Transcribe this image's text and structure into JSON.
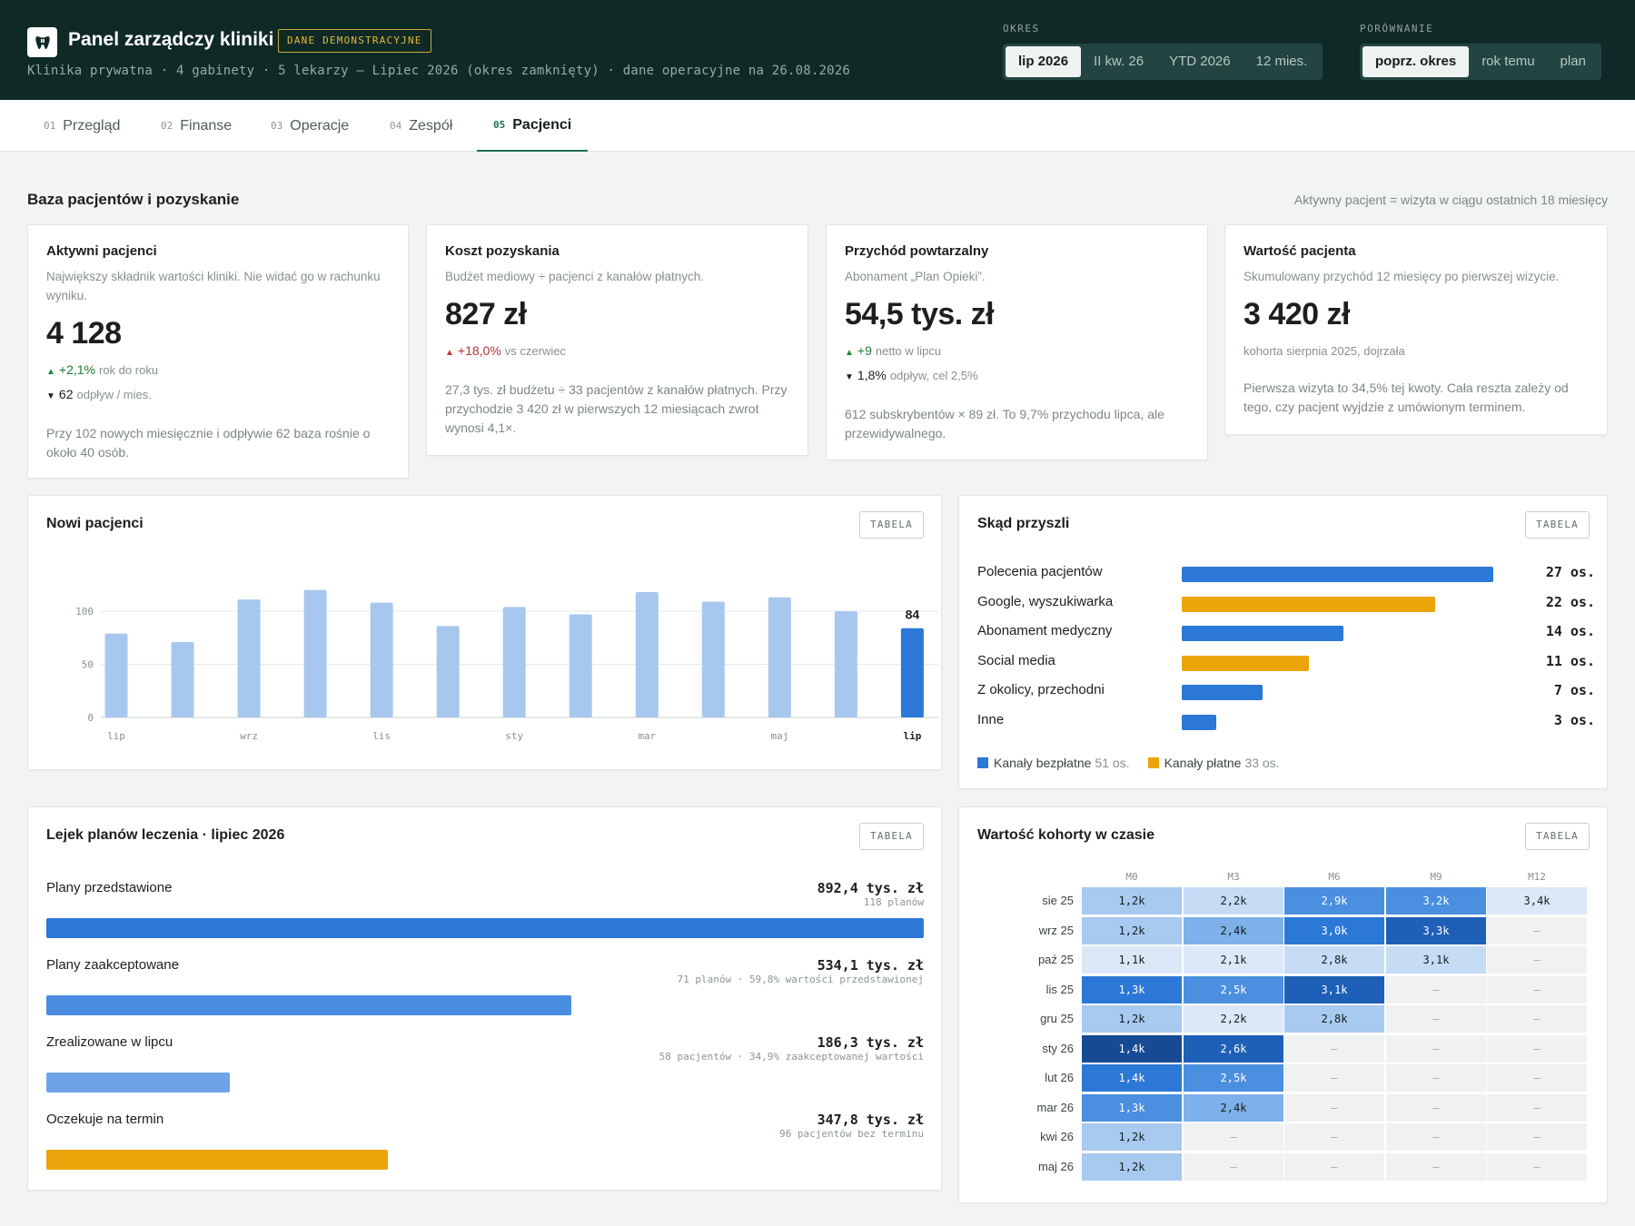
{
  "header": {
    "title": "Panel zarządczy kliniki",
    "badge": "DANE DEMONSTRACYJNE",
    "subtitle": "Klinika prywatna · 4 gabinety · 5 lekarzy — Lipiec 2026 (okres zamknięty) · dane operacyjne na 26.08.2026",
    "period_label": "OKRES",
    "period_options": [
      "lip 2026",
      "II kw. 26",
      "YTD 2026",
      "12 mies."
    ],
    "period_active": 0,
    "compare_label": "PORÓWNANIE",
    "compare_options": [
      "poprz. okres",
      "rok temu",
      "plan"
    ],
    "compare_active": 0
  },
  "tabs": [
    {
      "num": "01",
      "label": "Przegląd"
    },
    {
      "num": "02",
      "label": "Finanse"
    },
    {
      "num": "03",
      "label": "Operacje"
    },
    {
      "num": "04",
      "label": "Zespół"
    },
    {
      "num": "05",
      "label": "Pacjenci"
    }
  ],
  "active_tab": 4,
  "section": {
    "title": "Baza pacjentów i pozyskanie",
    "note": "Aktywny pacjent = wizyta w ciągu ostatnich 18 miesięcy"
  },
  "kpis": [
    {
      "title": "Aktywni pacjenci",
      "desc": "Największy składnik wartości kliniki. Nie widać go w rachunku wyniku.",
      "value": "4 128",
      "deltas": [
        {
          "arrow": "▲",
          "value": "+2,1%",
          "text": "rok do roku",
          "tone": "green"
        },
        {
          "arrow": "▼",
          "value": "62",
          "text": "odpływ / mies.",
          "tone": "neutral"
        }
      ],
      "note": "Przy 102 nowych miesięcznie i odpływie 62 baza rośnie o około 40 osób."
    },
    {
      "title": "Koszt pozyskania",
      "desc": "Budżet mediowy ÷ pacjenci z kanałów płatnych.",
      "value": "827 zł",
      "deltas": [
        {
          "arrow": "▲",
          "value": "+18,0%",
          "text": "vs czerwiec",
          "tone": "red"
        }
      ],
      "note": "27,3 tys. zł budżetu ÷ 33 pacjentów z kanałów płatnych. Przy przychodzie 3 420 zł w pierwszych 12 miesiącach zwrot wynosi 4,1×."
    },
    {
      "title": "Przychód powtarzalny",
      "desc": "Abonament „Plan Opieki”.",
      "value": "54,5 tys. zł",
      "deltas": [
        {
          "arrow": "▲",
          "value": "+9",
          "text": "netto w lipcu",
          "tone": "green"
        },
        {
          "arrow": "▼",
          "value": "1,8%",
          "text": "odpływ, cel 2,5%",
          "tone": "neutral"
        }
      ],
      "note": "612 subskrybentów × 89 zł. To 9,7% przychodu lipca, ale przewidywalnego."
    },
    {
      "title": "Wartość pacjenta",
      "desc": "Skumulowany przychód 12 miesięcy po pierwszej wizycie.",
      "value": "3 420 zł",
      "sub": "kohorta sierpnia 2025, dojrzała",
      "note": "Pierwsza wizyta to 34,5% tej kwoty. Cała reszta zależy od tego, czy pacjent wyjdzie z umówionym terminem."
    }
  ],
  "table_button": "TABELA",
  "new_patients": {
    "title": "Nowi pacjenci",
    "chart_data": {
      "type": "bar",
      "categories": [
        "lip",
        "sie",
        "wrz",
        "paź",
        "lis",
        "gru",
        "sty",
        "lut",
        "mar",
        "kwi",
        "maj",
        "cze",
        "lip"
      ],
      "tick_labels": [
        "lip",
        "wrz",
        "lis",
        "sty",
        "mar",
        "maj",
        "lip"
      ],
      "values": [
        79,
        71,
        111,
        120,
        108,
        86,
        104,
        97,
        118,
        109,
        113,
        100,
        84
      ],
      "y_ticks": [
        0,
        50,
        100
      ],
      "ylim": [
        0,
        150
      ],
      "highlight_index": 12,
      "highlight_label": "84",
      "grid": true,
      "colors": {
        "bar": "#a7c7ee",
        "highlight": "#2b78d6"
      }
    }
  },
  "sources": {
    "title": "Skąd przyszli",
    "chart_data": {
      "type": "bar",
      "orientation": "horizontal",
      "items": [
        {
          "label": "Polecenia pacjentów",
          "value": 27,
          "value_label": "27 os.",
          "kind": "free"
        },
        {
          "label": "Google, wyszukiwarka",
          "value": 22,
          "value_label": "22 os.",
          "kind": "paid"
        },
        {
          "label": "Abonament medyczny",
          "value": 14,
          "value_label": "14 os.",
          "kind": "free"
        },
        {
          "label": "Social media",
          "value": 11,
          "value_label": "11 os.",
          "kind": "paid"
        },
        {
          "label": "Z okolicy, przechodni",
          "value": 7,
          "value_label": "7 os.",
          "kind": "free"
        },
        {
          "label": "Inne",
          "value": 3,
          "value_label": "3 os.",
          "kind": "free"
        }
      ],
      "xlim": [
        0,
        27
      ]
    },
    "legend": [
      {
        "label": "Kanały bezpłatne",
        "count": "51 os.",
        "color": "#2b78d6"
      },
      {
        "label": "Kanały płatne",
        "count": "33 os.",
        "color": "#eba40a"
      }
    ]
  },
  "funnel": {
    "title": "Lejek planów leczenia · lipiec 2026",
    "chart_data": {
      "type": "bar",
      "orientation": "horizontal",
      "items": [
        {
          "label": "Plany przedstawione",
          "value": 892.4,
          "value_label": "892,4 tys. zł",
          "sub": "118 planów",
          "color": "#2b78d6"
        },
        {
          "label": "Plany zaakceptowane",
          "value": 534.1,
          "value_label": "534,1 tys. zł",
          "sub": "71 planów · 59,8% wartości przedstawionej",
          "color": "#4a8ce0"
        },
        {
          "label": "Zrealizowane w lipcu",
          "value": 186.3,
          "value_label": "186,3 tys. zł",
          "sub": "58 pacjentów · 34,9% zaakceptowanej wartości",
          "color": "#6fa3e8"
        },
        {
          "label": "Oczekuje na termin",
          "value": 347.8,
          "value_label": "347,8 tys. zł",
          "sub": "96 pacjentów bez terminu",
          "color": "#eba40a"
        }
      ],
      "xlim": [
        0,
        892.4
      ]
    }
  },
  "cohort": {
    "title": "Wartość kohorty w czasie",
    "chart_data": {
      "type": "heatmap",
      "columns": [
        "M0",
        "M3",
        "M6",
        "M9",
        "M12"
      ],
      "rows": [
        {
          "label": "sie 25",
          "cells": [
            "1,2k",
            "2,2k",
            "2,9k",
            "3,2k",
            "3,4k"
          ],
          "levels": [
            3,
            2,
            5,
            5,
            1
          ]
        },
        {
          "label": "wrz 25",
          "cells": [
            "1,2k",
            "2,4k",
            "3,0k",
            "3,3k",
            "–"
          ],
          "levels": [
            3,
            4,
            6,
            7,
            0
          ]
        },
        {
          "label": "paź 25",
          "cells": [
            "1,1k",
            "2,1k",
            "2,8k",
            "3,1k",
            "–"
          ],
          "levels": [
            1,
            1,
            2,
            2,
            0
          ]
        },
        {
          "label": "lis 25",
          "cells": [
            "1,3k",
            "2,5k",
            "3,1k",
            "–",
            "–"
          ],
          "levels": [
            6,
            5,
            7,
            0,
            0
          ]
        },
        {
          "label": "gru 25",
          "cells": [
            "1,2k",
            "2,2k",
            "2,8k",
            "–",
            "–"
          ],
          "levels": [
            3,
            1,
            3,
            0,
            0
          ]
        },
        {
          "label": "sty 26",
          "cells": [
            "1,4k",
            "2,6k",
            "–",
            "–",
            "–"
          ],
          "levels": [
            8,
            7,
            0,
            0,
            0
          ]
        },
        {
          "label": "lut 26",
          "cells": [
            "1,4k",
            "2,5k",
            "–",
            "–",
            "–"
          ],
          "levels": [
            6,
            5,
            0,
            0,
            0
          ]
        },
        {
          "label": "mar 26",
          "cells": [
            "1,3k",
            "2,4k",
            "–",
            "–",
            "–"
          ],
          "levels": [
            5,
            4,
            0,
            0,
            0
          ]
        },
        {
          "label": "kwi 26",
          "cells": [
            "1,2k",
            "–",
            "–",
            "–",
            "–"
          ],
          "levels": [
            3,
            0,
            0,
            0,
            0
          ]
        },
        {
          "label": "maj 26",
          "cells": [
            "1,2k",
            "–",
            "–",
            "–",
            "–"
          ],
          "levels": [
            3,
            0,
            0,
            0,
            0
          ]
        }
      ]
    }
  }
}
